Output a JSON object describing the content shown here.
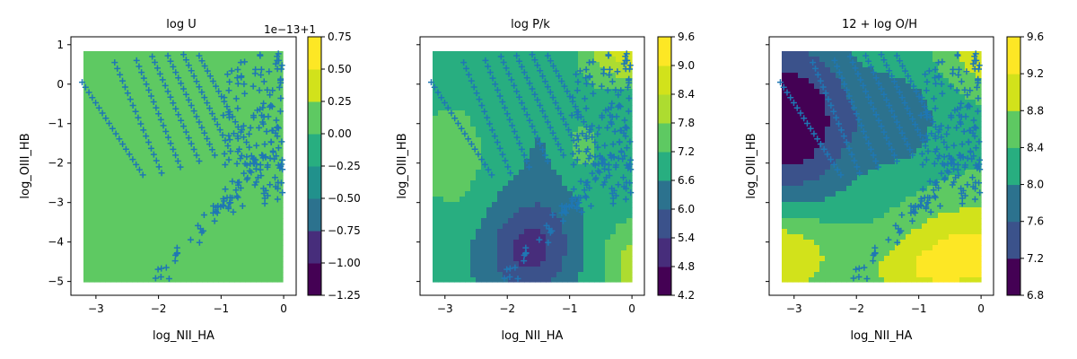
{
  "chart_data": [
    {
      "type": "contour",
      "title": "log U",
      "xlabel": "log_NII_HA",
      "ylabel": "log_OIII_HB",
      "xlim": [
        -3.4,
        0.2
      ],
      "ylim": [
        -5.35,
        1.2
      ],
      "xticks": [
        -3,
        -2,
        -1,
        0
      ],
      "yticks": [
        -5,
        -4,
        -3,
        -2,
        -1,
        0,
        1
      ],
      "xtick_labels": [
        "−3",
        "−2",
        "−1",
        "0"
      ],
      "ytick_labels": [
        "−5",
        "−4",
        "−3",
        "−2",
        "−1",
        "0",
        "1"
      ],
      "colorbar": {
        "offset_text": "1e−13+1",
        "ticks": [
          -1.25,
          -1.0,
          -0.75,
          -0.5,
          -0.25,
          0.0,
          0.25,
          0.5,
          0.75
        ],
        "tick_labels": [
          "−1.25",
          "−1.00",
          "−0.75",
          "−0.50",
          "−0.25",
          "0.00",
          "0.25",
          "0.50",
          "0.75"
        ],
        "range": [
          -1.25,
          0.75
        ]
      },
      "field": "constant",
      "constant_level": 0.0
    },
    {
      "type": "contour",
      "title": "log P/k",
      "xlabel": "log_NII_HA",
      "ylabel": "log_OIII_HB",
      "xlim": [
        -3.4,
        0.2
      ],
      "ylim": [
        -5.35,
        1.2
      ],
      "xticks": [
        -3,
        -2,
        -1,
        0
      ],
      "yticks": [
        -5,
        -4,
        -3,
        -2,
        -1,
        0,
        1
      ],
      "xtick_labels": [
        "−3",
        "−2",
        "−1",
        "0"
      ],
      "ytick_labels": [
        "",
        "",
        "",
        "",
        "",
        "",
        ""
      ],
      "colorbar": {
        "ticks": [
          4.2,
          4.8,
          5.4,
          6.0,
          6.6,
          7.2,
          7.8,
          8.4,
          9.0,
          9.6
        ],
        "tick_labels": [
          "4.2",
          "4.8",
          "5.4",
          "6.0",
          "6.6",
          "7.2",
          "7.8",
          "8.4",
          "9.0",
          "9.6"
        ],
        "range": [
          4.2,
          9.6
        ]
      },
      "field": "pressure"
    },
    {
      "type": "contour",
      "title": "12 + log O/H",
      "xlabel": "log_NII_HA",
      "ylabel": "log_OIII_HB",
      "xlim": [
        -3.4,
        0.2
      ],
      "ylim": [
        -5.35,
        1.2
      ],
      "xticks": [
        -3,
        -2,
        -1,
        0
      ],
      "yticks": [
        -5,
        -4,
        -3,
        -2,
        -1,
        0,
        1
      ],
      "xtick_labels": [
        "−3",
        "−2",
        "−1",
        "0"
      ],
      "ytick_labels": [
        "",
        "",
        "",
        "",
        "",
        "",
        ""
      ],
      "colorbar": {
        "ticks": [
          6.8,
          7.2,
          7.6,
          8.0,
          8.4,
          8.8,
          9.2,
          9.6
        ],
        "tick_labels": [
          "6.8",
          "7.2",
          "7.6",
          "8.0",
          "8.4",
          "8.8",
          "9.2",
          "9.6"
        ],
        "range": [
          6.8,
          9.6
        ]
      },
      "field": "metallicity"
    }
  ],
  "scatter": {
    "marker": "+",
    "color": "#1f77b4",
    "sequences": [
      {
        "x0": -3.22,
        "y0": 0.05,
        "x1": -2.25,
        "y1": -2.3
      },
      {
        "x0": -2.7,
        "y0": 0.55,
        "x1": -1.95,
        "y1": -2.25
      },
      {
        "x0": -2.35,
        "y0": 0.6,
        "x1": -1.65,
        "y1": -2.1
      },
      {
        "x0": -2.1,
        "y0": 0.7,
        "x1": -1.35,
        "y1": -1.95
      },
      {
        "x0": -1.85,
        "y0": 0.72,
        "x1": -1.1,
        "y1": -1.8
      },
      {
        "x0": -1.6,
        "y0": 0.75,
        "x1": -0.85,
        "y1": -1.7
      },
      {
        "x0": -1.35,
        "y0": 0.72,
        "x1": -0.55,
        "y1": -1.6
      }
    ]
  },
  "colors": {
    "viridis": [
      "#440154",
      "#472d7b",
      "#3b528b",
      "#2c728e",
      "#21918c",
      "#28ae80",
      "#5ec962",
      "#addc30",
      "#d2e21b",
      "#fde725"
    ]
  }
}
